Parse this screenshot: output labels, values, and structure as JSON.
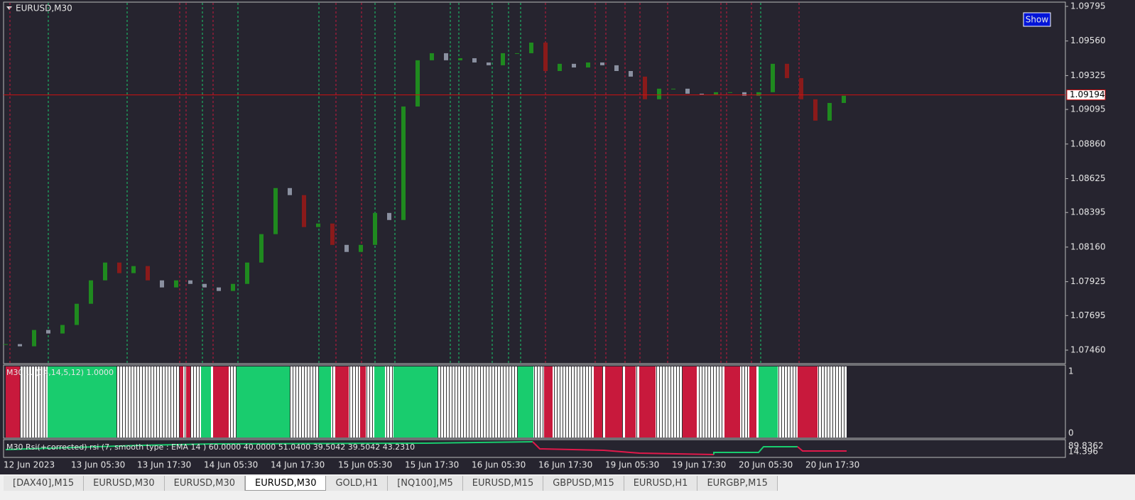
{
  "window": {
    "title": "EURUSD,M30",
    "show_button": "Show",
    "price_chart": {
      "type": "candle-close",
      "ylim": [
        1.0746,
        1.09795
      ],
      "yticks": [
        1.09795,
        {
          "value": 1.0956,
          "label": "1.09560"
        },
        1.09325,
        1.09095,
        {
          "value": 1.0886,
          "label": "1.08860"
        },
        1.08625,
        1.08395,
        {
          "value": 1.0816,
          "label": "1.08160"
        },
        1.07925,
        1.07695,
        {
          "value": 1.0746,
          "label": "1.07460"
        }
      ],
      "current_price": 1.09194,
      "closes": [
        1.07501,
        1.07486,
        1.07597,
        1.07573,
        1.07631,
        1.07775,
        1.07934,
        1.08055,
        1.07983,
        1.08031,
        1.07934,
        1.07886,
        1.07934,
        1.0791,
        1.07886,
        1.07862,
        1.0791,
        1.08055,
        1.08248,
        1.08561,
        1.08513,
        1.08296,
        1.0832,
        1.08175,
        1.08127,
        1.08175,
        1.08392,
        1.08344,
        1.09115,
        1.09429,
        1.09477,
        1.09429,
        1.09443,
        1.09414,
        1.09395,
        1.09477,
        1.09477,
        1.09549,
        1.09356,
        1.09405,
        1.0938,
        1.09414,
        1.09395,
        1.09356,
        1.09318,
        1.09164,
        1.09236,
        1.09236,
        1.09202,
        1.09197,
        1.09212,
        1.09212,
        1.09188,
        1.09212,
        1.09405,
        1.09308,
        1.09164,
        1.09019,
        1.09139,
        1.09188
      ]
    },
    "indicator1": {
      "label": "M30 ... (14,14,5,12) 1.0000",
      "ymax": 1,
      "ymin": 0
    },
    "indicator2": {
      "label": "M30 Rsi(+corrected) rsi (7, smooth type : EMA  14 ) 60.0000 40.0000 51.0400 39.5042 39.5042 43.2310",
      "ymax": 89.8362,
      "ymin": 14.396
    },
    "time_labels": [
      "12 Jun 2023",
      "13 Jun 05:30",
      "13 Jun 17:30",
      "14 Jun 05:30",
      "14 Jun 17:30",
      "15 Jun 05:30",
      "15 Jun 17:30",
      "16 Jun 05:30",
      "16 Jun 17:30",
      "19 Jun 05:30",
      "19 Jun 17:30",
      "20 Jun 05:30",
      "20 Jun 17:30"
    ],
    "tabs": [
      "[DAX40],M15",
      "EURUSD,M30",
      "EURUSD,M30",
      "EURUSD,M30",
      "GOLD,H1",
      "[NQ100],M5",
      "EURUSD,M15",
      "GBPUSD,M15",
      "EURUSD,H1",
      "EURGBP,M15"
    ],
    "active_tab": 3
  }
}
